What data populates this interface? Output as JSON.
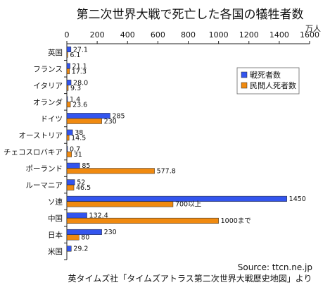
{
  "chart_data": {
    "type": "bar",
    "orientation": "horizontal",
    "title": "第二次世界大戦で死亡した各国の犠牲者数",
    "unit_label": "万人",
    "xlim": [
      0,
      1600
    ],
    "x_ticks": [
      0,
      200,
      400,
      600,
      800,
      1000,
      1200,
      1400,
      1600
    ],
    "grid": false,
    "legend_position": "right",
    "categories": [
      "英国",
      "フランス",
      "イタリア",
      "オランダ",
      "ドイツ",
      "オーストリア",
      "チェコスロバキア",
      "ポーランド",
      "ルーマニア",
      "ソ連",
      "中国",
      "日本",
      "米国"
    ],
    "series": [
      {
        "name": "戦死者数",
        "color": "#3355ee",
        "values": [
          27.1,
          21.1,
          28.0,
          1.4,
          285,
          38,
          0.7,
          85,
          52,
          1450,
          132.4,
          230,
          29.2
        ],
        "labels": [
          "27.1",
          "21.1",
          "28.0",
          "1.4",
          "285",
          "38",
          "0.7",
          "85",
          "52",
          "1450",
          "132.4",
          "230",
          "29.2"
        ]
      },
      {
        "name": "民間人死者数",
        "color": "#f08a10",
        "values": [
          6.1,
          17.3,
          9.3,
          23.6,
          230,
          14.5,
          31,
          577.8,
          46.5,
          700,
          1000,
          80,
          null
        ],
        "labels": [
          "6.1",
          "17.3",
          "9.3",
          "23.6",
          "230",
          "14.5",
          "31",
          "577.8",
          "46.5",
          "700以上",
          "1000まで",
          "80",
          ""
        ]
      }
    ],
    "source": "Source: ttcn.ne.jp",
    "credit": "英タイムズ社「タイムズアトラス第二次世界大戦歴史地図」より"
  }
}
